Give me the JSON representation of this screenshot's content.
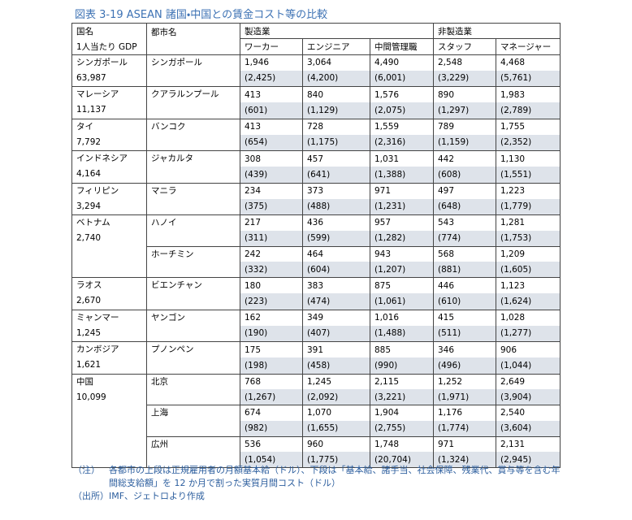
{
  "header": {
    "title": "図表 3-19 ASEAN 諸国・中国との賃金コスト等の比較"
  },
  "table": {
    "country_header": "国名",
    "gdp_header": "1人当たり GDP",
    "city_header": "都市名",
    "sections": [
      "製造業",
      "非製造業"
    ],
    "columns": [
      "ワーカー",
      "エンジニア",
      "中間管理職",
      "スタッフ",
      "マネージャー"
    ],
    "rows": [
      {
        "country": "シンガポール",
        "gdp": "63,987",
        "cities": [
          {
            "city": "シンガポール",
            "base": [
              "1,946",
              "3,064",
              "4,490",
              "2,548",
              "4,468"
            ],
            "total": [
              "(2,425)",
              "(4,200)",
              "(6,001)",
              "(3,229)",
              "(5,761)"
            ]
          }
        ]
      },
      {
        "country": "マレーシア",
        "gdp": "11,137",
        "cities": [
          {
            "city": "クアラルンプール",
            "base": [
              "413",
              "840",
              "1,576",
              "890",
              "1,983"
            ],
            "total": [
              "(601)",
              "(1,129)",
              "(2,075)",
              "(1,297)",
              "(2,789)"
            ]
          }
        ]
      },
      {
        "country": "タイ",
        "gdp": "7,792",
        "cities": [
          {
            "city": "バンコク",
            "base": [
              "413",
              "728",
              "1,559",
              "789",
              "1,755"
            ],
            "total": [
              "(654)",
              "(1,175)",
              "(2,316)",
              "(1,159)",
              "(2,352)"
            ]
          }
        ]
      },
      {
        "country": "インドネシア",
        "gdp": "4,164",
        "cities": [
          {
            "city": "ジャカルタ",
            "base": [
              "308",
              "457",
              "1,031",
              "442",
              "1,130"
            ],
            "total": [
              "(439)",
              "(641)",
              "(1,388)",
              "(608)",
              "(1,551)"
            ]
          }
        ]
      },
      {
        "country": "フィリピン",
        "gdp": "3,294",
        "cities": [
          {
            "city": "マニラ",
            "base": [
              "234",
              "373",
              "971",
              "497",
              "1,223"
            ],
            "total": [
              "(375)",
              "(488)",
              "(1,231)",
              "(648)",
              "(1,779)"
            ]
          }
        ]
      },
      {
        "country": "ベトナム",
        "gdp": "2,740",
        "cities": [
          {
            "city": "ハノイ",
            "base": [
              "217",
              "436",
              "957",
              "543",
              "1,281"
            ],
            "total": [
              "(311)",
              "(599)",
              "(1,282)",
              "(774)",
              "(1,753)"
            ]
          },
          {
            "city": "ホーチミン",
            "base": [
              "242",
              "464",
              "943",
              "568",
              "1,209"
            ],
            "total": [
              "(332)",
              "(604)",
              "(1,207)",
              "(881)",
              "(1,605)"
            ]
          }
        ]
      },
      {
        "country": "ラオス",
        "gdp": "2,670",
        "cities": [
          {
            "city": "ビエンチャン",
            "base": [
              "180",
              "383",
              "875",
              "446",
              "1,123"
            ],
            "total": [
              "(223)",
              "(474)",
              "(1,061)",
              "(610)",
              "(1,624)"
            ]
          }
        ]
      },
      {
        "country": "ミャンマー",
        "gdp": "1,245",
        "cities": [
          {
            "city": "ヤンゴン",
            "base": [
              "162",
              "349",
              "1,016",
              "415",
              "1,028"
            ],
            "total": [
              "(190)",
              "(407)",
              "(1,488)",
              "(511)",
              "(1,277)"
            ]
          }
        ]
      },
      {
        "country": "カンボジア",
        "gdp": "1,621",
        "cities": [
          {
            "city": "プノンペン",
            "base": [
              "175",
              "391",
              "885",
              "346",
              "906"
            ],
            "total": [
              "(198)",
              "(458)",
              "(990)",
              "(496)",
              "(1,044)"
            ]
          }
        ]
      },
      {
        "country": "中国",
        "gdp": "10,099",
        "cities": [
          {
            "city": "北京",
            "base": [
              "768",
              "1,245",
              "2,115",
              "1,252",
              "2,649"
            ],
            "total": [
              "(1,267)",
              "(2,092)",
              "(3,221)",
              "(1,971)",
              "(3,904)"
            ]
          },
          {
            "city": "上海",
            "base": [
              "674",
              "1,070",
              "1,904",
              "1,176",
              "2,540"
            ],
            "total": [
              "(982)",
              "(1,655)",
              "(2,755)",
              "(1,774)",
              "(3,604)"
            ]
          },
          {
            "city": "広州",
            "base": [
              "536",
              "960",
              "1,748",
              "971",
              "2,131"
            ],
            "total": [
              "(1,054)",
              "(1,775)",
              "(20,704)",
              "(1,324)",
              "(2,945)"
            ]
          }
        ]
      }
    ]
  },
  "notes": {
    "note_label": "（注）",
    "note": "各都市の上段は正規雇用者の月額基本給（ドル）、下段は「基本給、諸手当、社会保障、残業代、賞与等を含む年間総支給額」を 12 か月で割った実質月間コスト（ドル）",
    "source": "（出所）IMF、ジェトロより作成"
  }
}
